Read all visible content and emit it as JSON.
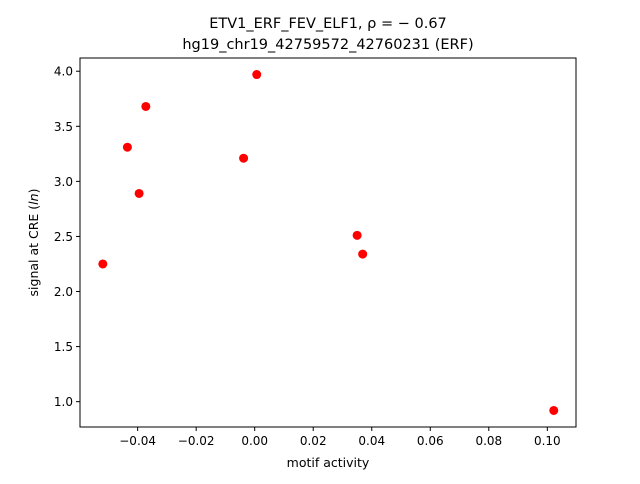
{
  "chart_data": {
    "type": "scatter",
    "title_line1": "ETV1_ERF_FEV_ELF1, ρ = − 0.67",
    "title_line2": "hg19_chr19_42759572_42760231 (ERF)",
    "xlabel": "motif activity",
    "ylabel_prefix": "signal at CRE (",
    "ylabel_math": "ln",
    "ylabel_suffix": ")",
    "xlim": [
      -0.0597,
      0.1098
    ],
    "ylim": [
      0.77,
      4.12
    ],
    "xticks": [
      -0.04,
      -0.02,
      0.0,
      0.02,
      0.04,
      0.06,
      0.08,
      0.1
    ],
    "xtick_labels": [
      "−0.04",
      "−0.02",
      "0.00",
      "0.02",
      "0.04",
      "0.06",
      "0.08",
      "0.10"
    ],
    "yticks": [
      1.0,
      1.5,
      2.0,
      2.5,
      3.0,
      3.5,
      4.0
    ],
    "ytick_labels": [
      "1.0",
      "1.5",
      "2.0",
      "2.5",
      "3.0",
      "3.5",
      "4.0"
    ],
    "grid": false,
    "legend": "none",
    "marker_color": "#ff0000",
    "series": [
      {
        "x": [
          -0.0519,
          -0.0435,
          -0.0372,
          -0.0395,
          -0.0038,
          0.0007,
          0.035,
          0.0369,
          0.1022
        ],
        "y": [
          2.25,
          3.31,
          3.68,
          2.89,
          3.21,
          3.97,
          2.51,
          2.34,
          0.92
        ]
      }
    ]
  }
}
